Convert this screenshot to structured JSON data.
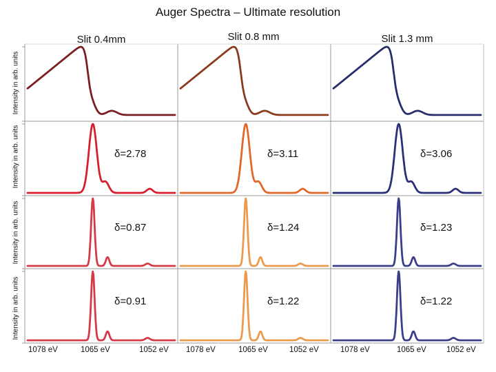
{
  "title": "Auger Spectra – Ultimate resolution",
  "columns": [
    {
      "title": "Slit 0.4mm",
      "xticks": [
        "1078 eV",
        "1065 eV",
        "1052 eV"
      ]
    },
    {
      "title": "Slit 0.8 mm",
      "xticks": [
        "1078 eV",
        "1065 eV",
        "1052 eV"
      ]
    },
    {
      "title": "Slit 1.3 mm",
      "xticks": [
        "1078 eV",
        "1065 eV",
        "1052 eV"
      ]
    }
  ],
  "ylabel": "Intensity in arb. units",
  "chart_data": {
    "type": "line",
    "title": "Auger Spectra – Ultimate resolution",
    "xlabel": "",
    "ylabel": "Intensity in arb. units",
    "xlim": [
      1082,
      1047
    ],
    "xticks": [
      1078,
      1065,
      1052
    ],
    "xunit": "eV",
    "grid": false,
    "panels": [
      {
        "row": 0,
        "col": 0,
        "color": "#7a1e22",
        "shape": "broad",
        "annotation": ""
      },
      {
        "row": 0,
        "col": 1,
        "color": "#8b3a1c",
        "shape": "broad",
        "annotation": ""
      },
      {
        "row": 0,
        "col": 2,
        "color": "#272c6c",
        "shape": "broad",
        "annotation": ""
      },
      {
        "row": 1,
        "col": 0,
        "color": "#d81f2e",
        "shape": "medium",
        "annotation": "δ=2.78"
      },
      {
        "row": 1,
        "col": 1,
        "color": "#e2672a",
        "shape": "medium",
        "annotation": "δ=3.11"
      },
      {
        "row": 1,
        "col": 2,
        "color": "#2a2f78",
        "shape": "medium",
        "annotation": "δ=3.06"
      },
      {
        "row": 2,
        "col": 0,
        "color": "#d43b48",
        "shape": "narrow",
        "annotation": "δ=0.87"
      },
      {
        "row": 2,
        "col": 1,
        "color": "#eb9a4e",
        "shape": "narrow",
        "annotation": "δ=1.24"
      },
      {
        "row": 2,
        "col": 2,
        "color": "#3b3e88",
        "shape": "narrow",
        "annotation": "δ=1.23"
      },
      {
        "row": 3,
        "col": 0,
        "color": "#d43b48",
        "shape": "narrow",
        "annotation": "δ=0.91"
      },
      {
        "row": 3,
        "col": 1,
        "color": "#eb9a4e",
        "shape": "narrow",
        "annotation": "δ=1.22"
      },
      {
        "row": 3,
        "col": 2,
        "color": "#3b3e88",
        "shape": "narrow",
        "annotation": "δ=1.22"
      }
    ],
    "peaks": {
      "main": 1066.5,
      "satellite": 1063.0,
      "small": 1053.5
    }
  }
}
